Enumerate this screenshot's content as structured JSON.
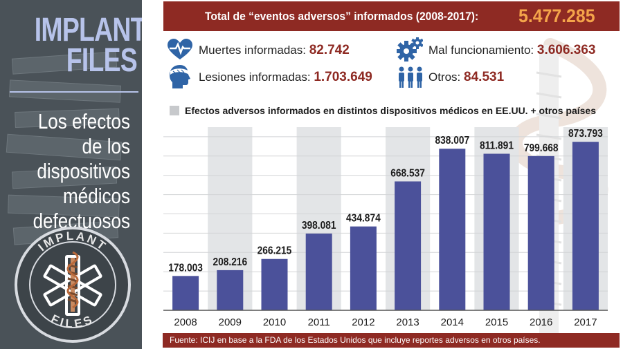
{
  "left_panel": {
    "kicker": "IMPLANTS FILES",
    "subtitle": "Los efectos de los dispositivos médicos defectuosos",
    "seal_top": "IMPLANT",
    "seal_bottom": "FILES"
  },
  "header": {
    "title": "Total de “eventos adversos” informados (2008-2017):",
    "total": "5.477.285"
  },
  "stats": [
    {
      "label": "Muertes informadas:",
      "value": "82.742",
      "icon": "heart-monitor-icon"
    },
    {
      "label": "Mal funcionamiento:",
      "value": "3.606.363",
      "icon": "gears-icon"
    },
    {
      "label": "Lesiones informadas:",
      "value": "1.703.649",
      "icon": "bandaged-head-icon"
    },
    {
      "label": "Otros:",
      "value": "84.531",
      "icon": "people-icon"
    }
  ],
  "colors": {
    "bar": "#4b519a",
    "band": "#e3e5e7",
    "accent": "#8e2a23",
    "total": "#f4a44a"
  },
  "chart_data": {
    "type": "bar",
    "title": "Efectos adversos informados en distintos dispositivos médicos en EE.UU. + otros países",
    "categories": [
      "2008",
      "2009",
      "2010",
      "2011",
      "2012",
      "2013",
      "2014",
      "2015",
      "2016",
      "2017"
    ],
    "values": [
      178003,
      208216,
      266215,
      398081,
      434874,
      668537,
      838007,
      811891,
      799668,
      873793
    ],
    "value_labels": [
      "178.003",
      "208.216",
      "266.215",
      "398.081",
      "434.874",
      "668.537",
      "838.007",
      "811.891",
      "799.668",
      "873.793"
    ],
    "ylim": [
      0,
      1000000
    ],
    "grid": true,
    "legend": "top-left"
  },
  "footer": {
    "source": "Fuente: ICIJ en base a la FDA de los Estados Unidos que incluye reportes adversos en otros países."
  }
}
